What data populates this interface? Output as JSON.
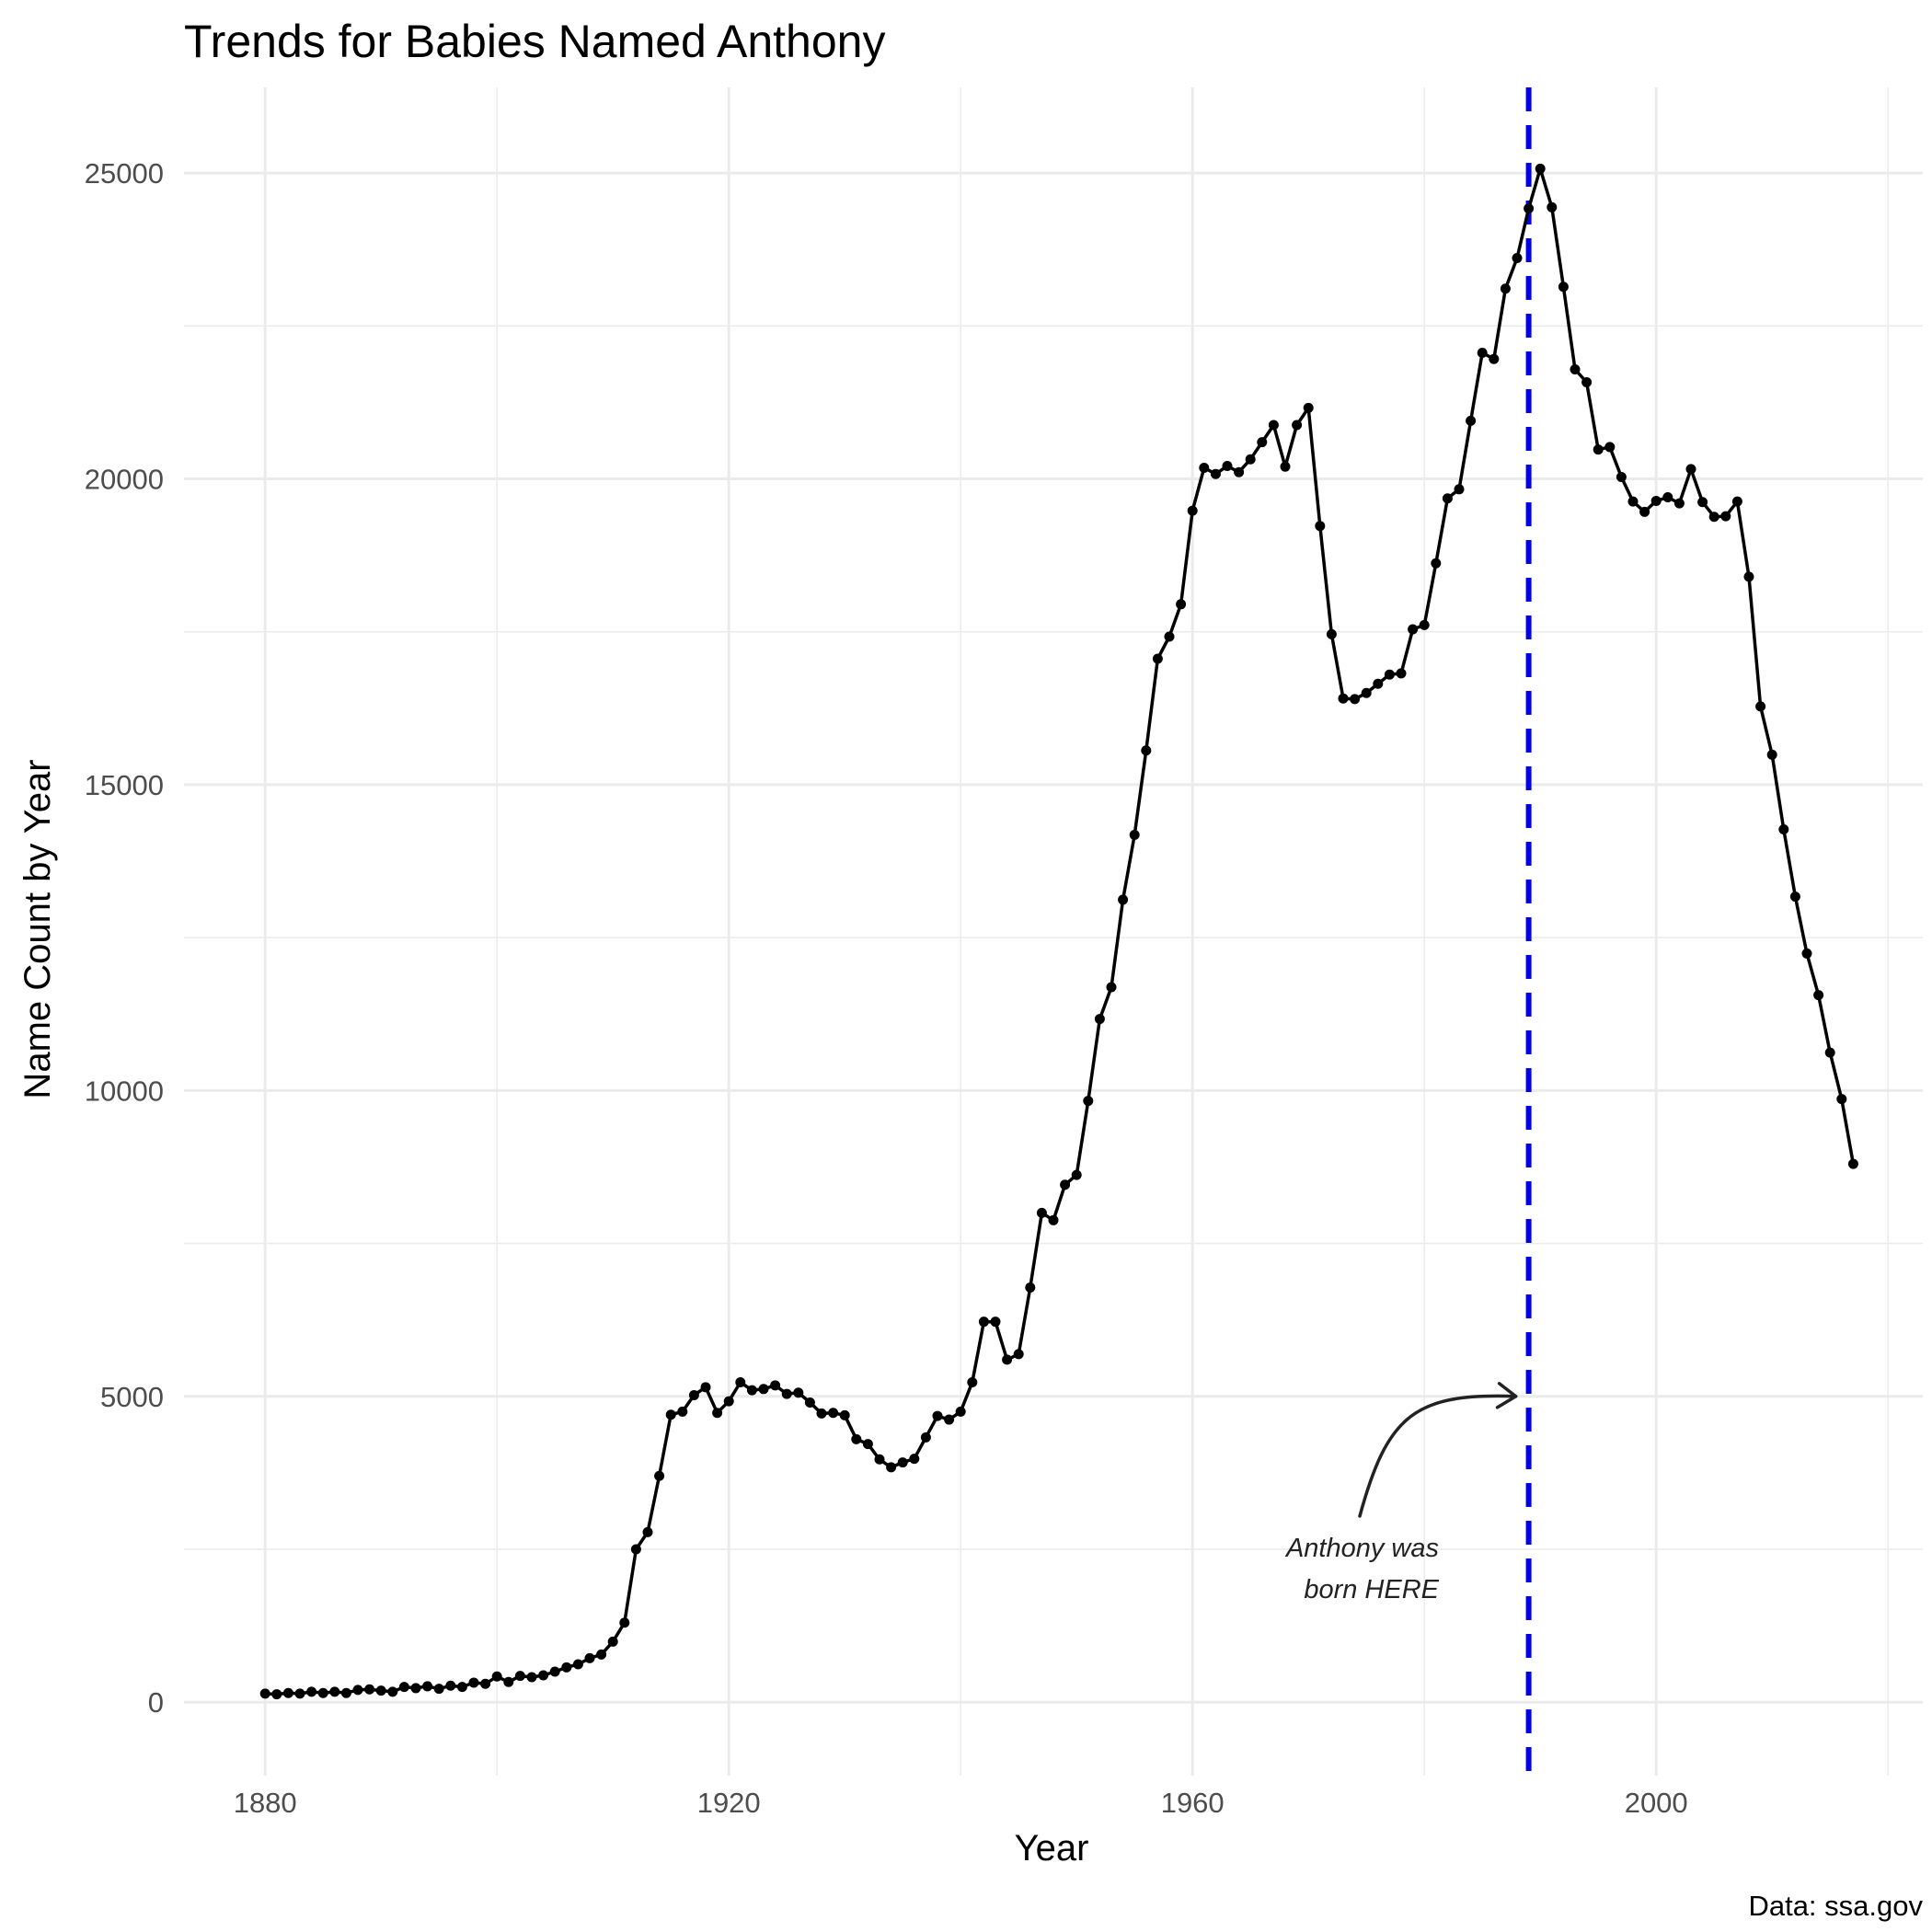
{
  "chart_data": {
    "type": "line",
    "title": "Trends for Babies Named Anthony",
    "xlabel": "Year",
    "ylabel": "Name Count by Year",
    "caption": "Data: ssa.gov",
    "xlim": [
      1873,
      2023
    ],
    "ylim": [
      -1200,
      26400
    ],
    "x_ticks": [
      1880,
      1920,
      1960,
      2000
    ],
    "y_ticks": [
      0,
      5000,
      10000,
      15000,
      20000,
      25000
    ],
    "x_tick_labels": [
      "1880",
      "1920",
      "1960",
      "2000"
    ],
    "y_tick_labels": [
      "0",
      "5000",
      "10000",
      "15000",
      "20000",
      "25000"
    ],
    "grid": true,
    "reference_line": {
      "x": 1989,
      "color": "#0000ee",
      "style": "dashed"
    },
    "annotation": {
      "lines": [
        "Anthony was",
        "born HERE"
      ],
      "arrow_to": [
        1989,
        5000
      ]
    },
    "series": [
      {
        "color": "#000000",
        "x": [
          1880,
          1881,
          1882,
          1883,
          1884,
          1885,
          1886,
          1887,
          1888,
          1889,
          1890,
          1891,
          1892,
          1893,
          1894,
          1895,
          1896,
          1897,
          1898,
          1899,
          1900,
          1901,
          1902,
          1903,
          1904,
          1905,
          1906,
          1907,
          1908,
          1909,
          1910,
          1911,
          1912,
          1913,
          1914,
          1915,
          1916,
          1917,
          1918,
          1919,
          1920,
          1921,
          1922,
          1923,
          1924,
          1925,
          1926,
          1927,
          1928,
          1929,
          1930,
          1931,
          1932,
          1933,
          1934,
          1935,
          1936,
          1937,
          1938,
          1939,
          1940,
          1941,
          1942,
          1943,
          1944,
          1945,
          1946,
          1947,
          1948,
          1949,
          1950,
          1951,
          1952,
          1953,
          1954,
          1955,
          1956,
          1957,
          1958,
          1959,
          1960,
          1961,
          1962,
          1963,
          1964,
          1965,
          1966,
          1967,
          1968,
          1969,
          1970,
          1971,
          1972,
          1973,
          1974,
          1975,
          1976,
          1977,
          1978,
          1979,
          1980,
          1981,
          1982,
          1983,
          1984,
          1985,
          1986,
          1987,
          1988,
          1989,
          1990,
          1991,
          1992,
          1993,
          1994,
          1995,
          1996,
          1997,
          1998,
          1999,
          2000,
          2001,
          2002,
          2003,
          2004,
          2005,
          2006,
          2007,
          2008,
          2009,
          2010,
          2011,
          2012,
          2013,
          2014,
          2015,
          2016,
          2017
        ],
        "values": [
          140,
          130,
          150,
          140,
          170,
          150,
          170,
          150,
          200,
          210,
          190,
          170,
          250,
          230,
          260,
          220,
          270,
          250,
          320,
          300,
          420,
          330,
          430,
          410,
          440,
          500,
          570,
          620,
          720,
          780,
          990,
          1300,
          2500,
          2780,
          3700,
          4700,
          4750,
          5020,
          5150,
          4730,
          4920,
          5230,
          5100,
          5120,
          5180,
          5040,
          5060,
          4900,
          4720,
          4730,
          4690,
          4300,
          4220,
          3970,
          3840,
          3920,
          3980,
          4330,
          4680,
          4620,
          4750,
          5230,
          6220,
          6220,
          5600,
          5690,
          6780,
          8000,
          7880,
          8460,
          8620,
          9830,
          11170,
          11690,
          13120,
          14180,
          15560,
          17060,
          17420,
          17950,
          19480,
          20180,
          20080,
          20210,
          20110,
          20320,
          20600,
          20880,
          20200,
          20880,
          21160,
          19230,
          17460,
          16410,
          16400,
          16500,
          16650,
          16800,
          16820,
          17540,
          17610,
          18620,
          19680,
          19830,
          20950,
          22060,
          21960,
          23110,
          23610,
          24420,
          25070,
          24440,
          23140,
          21790,
          21580,
          20480,
          20520,
          20030,
          19630,
          19460,
          19640,
          19700,
          19600,
          20160,
          19620,
          19380,
          19390,
          19630,
          18400,
          16280,
          15490,
          14270,
          13170,
          12240,
          11560,
          10620,
          9860,
          8800
        ]
      }
    ]
  }
}
